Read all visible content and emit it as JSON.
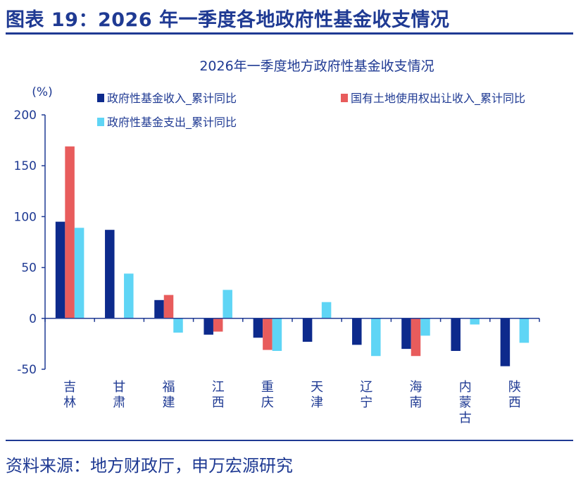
{
  "figure_title": "图表 19：2026 年一季度各地政府性基金收支情况",
  "source": "资料来源：地方财政厅，申万宏源研究",
  "colors": {
    "brand": "#1f3a93"
  },
  "chart_data": {
    "type": "bar",
    "title": "2026年一季度地方政府性基金收支情况",
    "ylabel": "(%)",
    "xlabel": "",
    "ylim": [
      -50,
      200
    ],
    "yticks": [
      -50,
      0,
      50,
      100,
      150,
      200
    ],
    "grid": false,
    "legend_position": "top",
    "categories": [
      "吉林",
      "甘肃",
      "福建",
      "江西",
      "重庆",
      "天津",
      "辽宁",
      "海南",
      "内蒙古",
      "陕西"
    ],
    "series": [
      {
        "name": "政府性基金收入_累计同比",
        "color": "#0d2a8c",
        "values": [
          95,
          87,
          18,
          -16,
          -19,
          -23,
          -26,
          -30,
          -32,
          -47
        ]
      },
      {
        "name": "国有土地使用权出让收入_累计同比",
        "color": "#e85c5c",
        "values": [
          169,
          null,
          23,
          -13,
          -31,
          null,
          null,
          -37,
          null,
          null
        ]
      },
      {
        "name": "政府性基金支出_累计同比",
        "color": "#5fd5f5",
        "values": [
          89,
          44,
          -14,
          28,
          -32,
          16,
          -37,
          -17,
          -6,
          -24
        ]
      }
    ]
  }
}
